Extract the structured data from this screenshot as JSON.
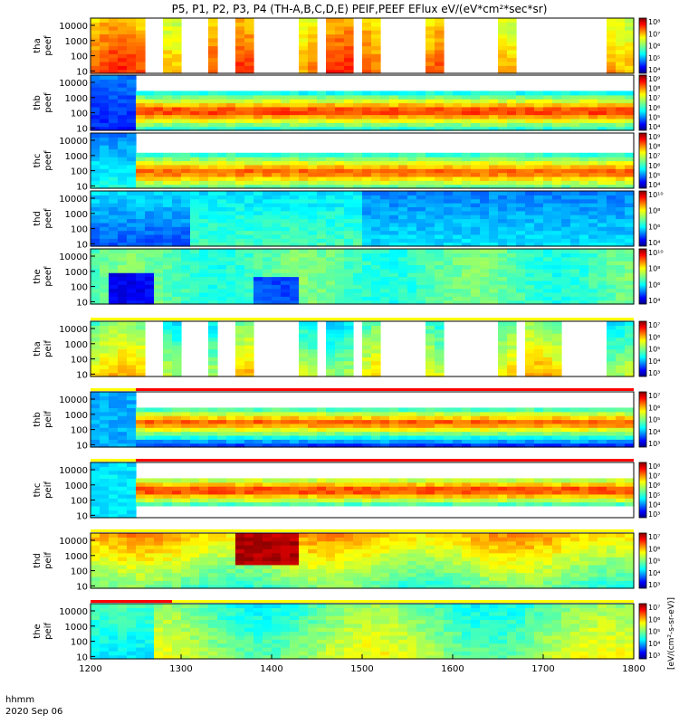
{
  "chart_data": {
    "type": "heatmap",
    "title": "P5, P1, P2, P3, P4 (TH-A,B,C,D,E) PEIF,PEEF EFlux eV/(eV*cm²*sec*sr)",
    "colorbar_label": "[eV/(cm²-s-sr-eV)]",
    "x_date_label": "2020 Sep 06",
    "x_hhmm_label": "hhmm",
    "x_ticks": [
      "1200",
      "1300",
      "1400",
      "1500",
      "1600",
      "1700",
      "1800"
    ],
    "x_range": [
      1200,
      1800
    ],
    "y_scale": "log",
    "y_ticks": [
      "10",
      "100",
      "1000",
      "10000"
    ],
    "panels": [
      {
        "label1": "tha",
        "label2": "peef",
        "cb_ticks": [
          "10⁴",
          "10⁵",
          "10⁶",
          "10⁷",
          "10⁸"
        ],
        "gaps": [
          [
            1260,
            1281
          ],
          [
            1296,
            1328
          ],
          [
            1345,
            1361
          ],
          [
            1385,
            1434
          ],
          [
            1450,
            1464
          ],
          [
            1490,
            1501
          ],
          [
            1520,
            1572
          ],
          [
            1586,
            1652
          ],
          [
            1666,
            1769
          ]
        ],
        "bands": []
      },
      {
        "label1": "thb",
        "label2": "peef",
        "cb_ticks": [
          "10⁴",
          "10⁵",
          "10⁶",
          "10⁷",
          "10⁸",
          "10⁹"
        ],
        "gaps": [],
        "bands": []
      },
      {
        "label1": "thc",
        "label2": "peef",
        "cb_ticks": [
          "10⁴",
          "10⁵",
          "10⁶",
          "10⁷",
          "10⁸",
          "10⁹"
        ],
        "gaps": [],
        "bands": []
      },
      {
        "label1": "thd",
        "label2": "peef",
        "cb_ticks": [
          "10⁴",
          "10⁶",
          "10⁸",
          "10¹⁰"
        ],
        "gaps": [],
        "bands": []
      },
      {
        "label1": "the",
        "label2": "peef",
        "cb_ticks": [
          "10⁴",
          "10⁶",
          "10⁸",
          "10¹⁰"
        ],
        "gaps": [],
        "bands": []
      },
      {
        "label1": "tha",
        "label2": "peif",
        "cb_ticks": [
          "10³",
          "10⁴",
          "10⁵",
          "10⁶",
          "10⁷"
        ],
        "gaps": [
          [
            1260,
            1281
          ],
          [
            1296,
            1328
          ],
          [
            1345,
            1361
          ],
          [
            1385,
            1434
          ],
          [
            1450,
            1464
          ],
          [
            1490,
            1501
          ],
          [
            1520,
            1572
          ],
          [
            1586,
            1652
          ],
          [
            1666,
            1677
          ],
          [
            1720,
            1769
          ]
        ],
        "bands": [
          {
            "x0": 1200,
            "x1": 1800,
            "color": "#ffff00",
            "pos": "top"
          }
        ]
      },
      {
        "label1": "thb",
        "label2": "peif",
        "cb_ticks": [
          "10³",
          "10⁴",
          "10⁵",
          "10⁶",
          "10⁷"
        ],
        "gaps": [],
        "bands": [
          {
            "x0": 1200,
            "x1": 1250,
            "color": "#ffff00",
            "pos": "top"
          },
          {
            "x0": 1250,
            "x1": 1800,
            "color": "#ff0000",
            "pos": "top"
          }
        ]
      },
      {
        "label1": "thc",
        "label2": "peif",
        "cb_ticks": [
          "10³",
          "10⁴",
          "10⁵",
          "10⁶",
          "10⁷",
          "10⁸"
        ],
        "gaps": [],
        "bands": [
          {
            "x0": 1200,
            "x1": 1250,
            "color": "#ffff00",
            "pos": "top"
          },
          {
            "x0": 1250,
            "x1": 1800,
            "color": "#ff0000",
            "pos": "top"
          }
        ]
      },
      {
        "label1": "thd",
        "label2": "peif",
        "cb_ticks": [
          "10³",
          "10⁴",
          "10⁵",
          "10⁶",
          "10⁷"
        ],
        "gaps": [],
        "bands": [
          {
            "x0": 1200,
            "x1": 1800,
            "color": "#ffff00",
            "pos": "top"
          }
        ]
      },
      {
        "label1": "the",
        "label2": "peif",
        "cb_ticks": [
          "10³",
          "10⁴",
          "10⁵",
          "10⁶",
          "10⁷"
        ],
        "gaps": [],
        "bands": [
          {
            "x0": 1200,
            "x1": 1290,
            "color": "#ff0000",
            "pos": "top"
          },
          {
            "x0": 1290,
            "x1": 1800,
            "color": "#ffff00",
            "pos": "top"
          }
        ]
      }
    ]
  }
}
